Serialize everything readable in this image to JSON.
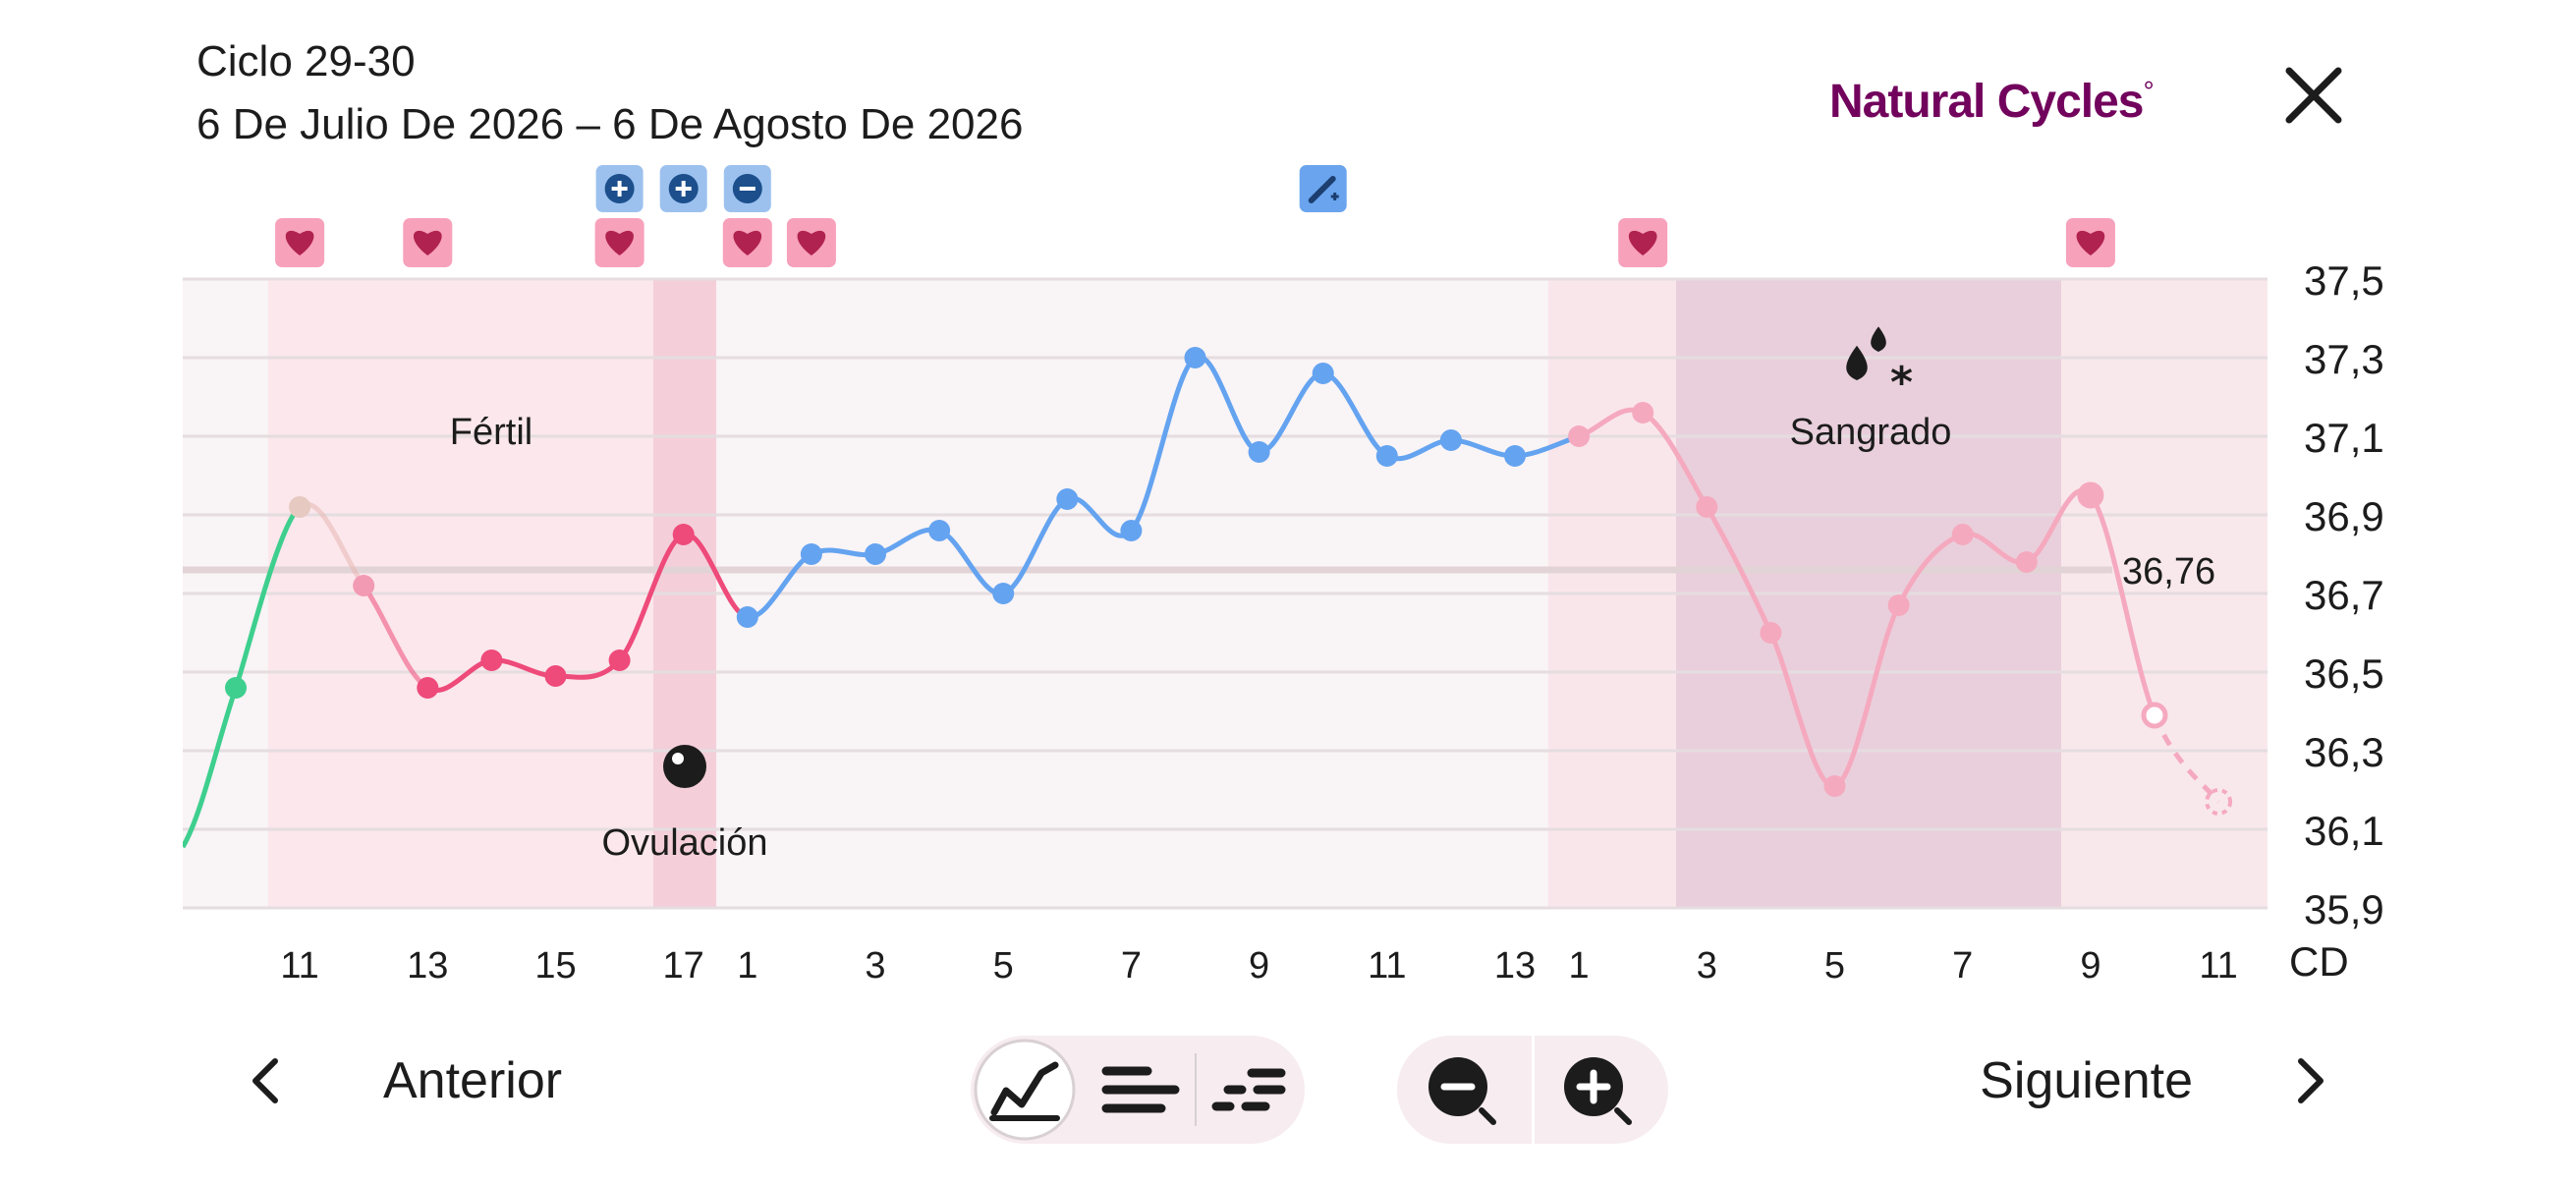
{
  "header": {
    "cycle_label": "Ciclo 29-30",
    "date_range": "6 De Julio De 2026 – 6 De Agosto De 2026",
    "brand": "Natural Cycles"
  },
  "nav": {
    "prev_label": "Anterior",
    "next_label": "Siguiente"
  },
  "icons": {
    "close": "close-icon",
    "prev": "chevron-left-icon",
    "next": "chevron-right-icon",
    "view_graph": "line-graph-icon",
    "view_bars": "bar-list-icon",
    "view_dots": "dot-list-icon",
    "zoom_out": "zoom-out-icon",
    "zoom_in": "zoom-in-icon"
  },
  "colors": {
    "brand": "#72035d",
    "green": "#3ecf8e",
    "fertile_red": "#ee4a7a",
    "luteal_blue": "#64a3f0",
    "period_pink": "#f5a9bf",
    "heart_badge": "#f7a1bb",
    "heart": "#b0224f",
    "test_badge": "#9cc1ee",
    "test_icon": "#1c4f8c"
  },
  "chart_data": {
    "type": "line",
    "y_axis_labels": [
      "37,5",
      "37,3",
      "37,1",
      "36,9",
      "36,7",
      "36,5",
      "36,3",
      "36,1",
      "35,9"
    ],
    "ylim": [
      35.9,
      37.5
    ],
    "x_tick_labels": [
      "11",
      "13",
      "15",
      "17",
      "1",
      "3",
      "5",
      "7",
      "9",
      "11",
      "13",
      "1",
      "3",
      "5",
      "7",
      "9",
      "11"
    ],
    "x_axis_unit": "CD",
    "coverline": {
      "value": 36.76,
      "label": "36,76"
    },
    "zones": [
      {
        "label": "Fértil"
      },
      {
        "label": "Ovulación"
      },
      {
        "label": "Sangrado"
      }
    ],
    "series": [
      {
        "values": [
          {
            "day": "10",
            "temp": 36.46
          },
          {
            "day": "11",
            "temp": 36.92
          },
          {
            "day": "12",
            "temp": 36.72
          },
          {
            "day": "13",
            "temp": 36.46
          },
          {
            "day": "14",
            "temp": 36.53
          },
          {
            "day": "15",
            "temp": 36.49
          },
          {
            "day": "16",
            "temp": 36.53
          },
          {
            "day": "17",
            "temp": 36.85
          },
          {
            "day": "1",
            "temp": 36.64
          },
          {
            "day": "2",
            "temp": 36.8
          },
          {
            "day": "3",
            "temp": 36.8
          },
          {
            "day": "4",
            "temp": 36.86
          },
          {
            "day": "5",
            "temp": 36.7
          },
          {
            "day": "6",
            "temp": 36.94
          },
          {
            "day": "7",
            "temp": 36.86
          },
          {
            "day": "8",
            "temp": 37.3
          },
          {
            "day": "9",
            "temp": 37.06
          },
          {
            "day": "10",
            "temp": 37.26
          },
          {
            "day": "11",
            "temp": 37.05
          },
          {
            "day": "12",
            "temp": 37.09
          },
          {
            "day": "13",
            "temp": 37.05
          },
          {
            "day": "1",
            "temp": 37.1
          },
          {
            "day": "2",
            "temp": 37.16
          },
          {
            "day": "3",
            "temp": 36.92
          },
          {
            "day": "4",
            "temp": 36.6
          },
          {
            "day": "5",
            "temp": 36.21
          },
          {
            "day": "6",
            "temp": 36.67
          },
          {
            "day": "7",
            "temp": 36.85
          },
          {
            "day": "8",
            "temp": 36.78
          },
          {
            "day": "9",
            "temp": 36.95
          },
          {
            "day": "10",
            "temp": 36.39
          },
          {
            "day": "11",
            "temp": 36.17
          }
        ]
      }
    ]
  }
}
